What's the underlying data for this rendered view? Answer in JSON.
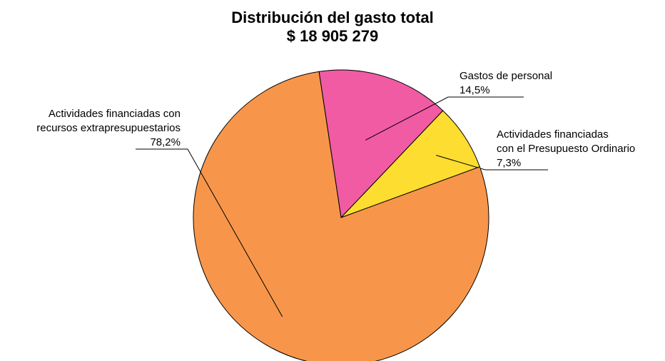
{
  "chart_data": {
    "type": "pie",
    "title": "Distribución del gasto total",
    "subtitle": "$ 18 905 279",
    "start_angle_deg": 98.6,
    "slices": [
      {
        "name_lines": [
          "Gastos de personal"
        ],
        "percent_label": "14,5%",
        "value": 14.5,
        "color": "#f05ba4"
      },
      {
        "name_lines": [
          "Actividades financiadas",
          "con el Presupuesto Ordinario"
        ],
        "percent_label": "7,3%",
        "value": 7.3,
        "color": "#fddd30"
      },
      {
        "name_lines": [
          "Actividades financiadas con",
          "recursos extrapresupuestarios"
        ],
        "percent_label": "78,2%",
        "value": 78.2,
        "color": "#f7964a"
      }
    ]
  }
}
